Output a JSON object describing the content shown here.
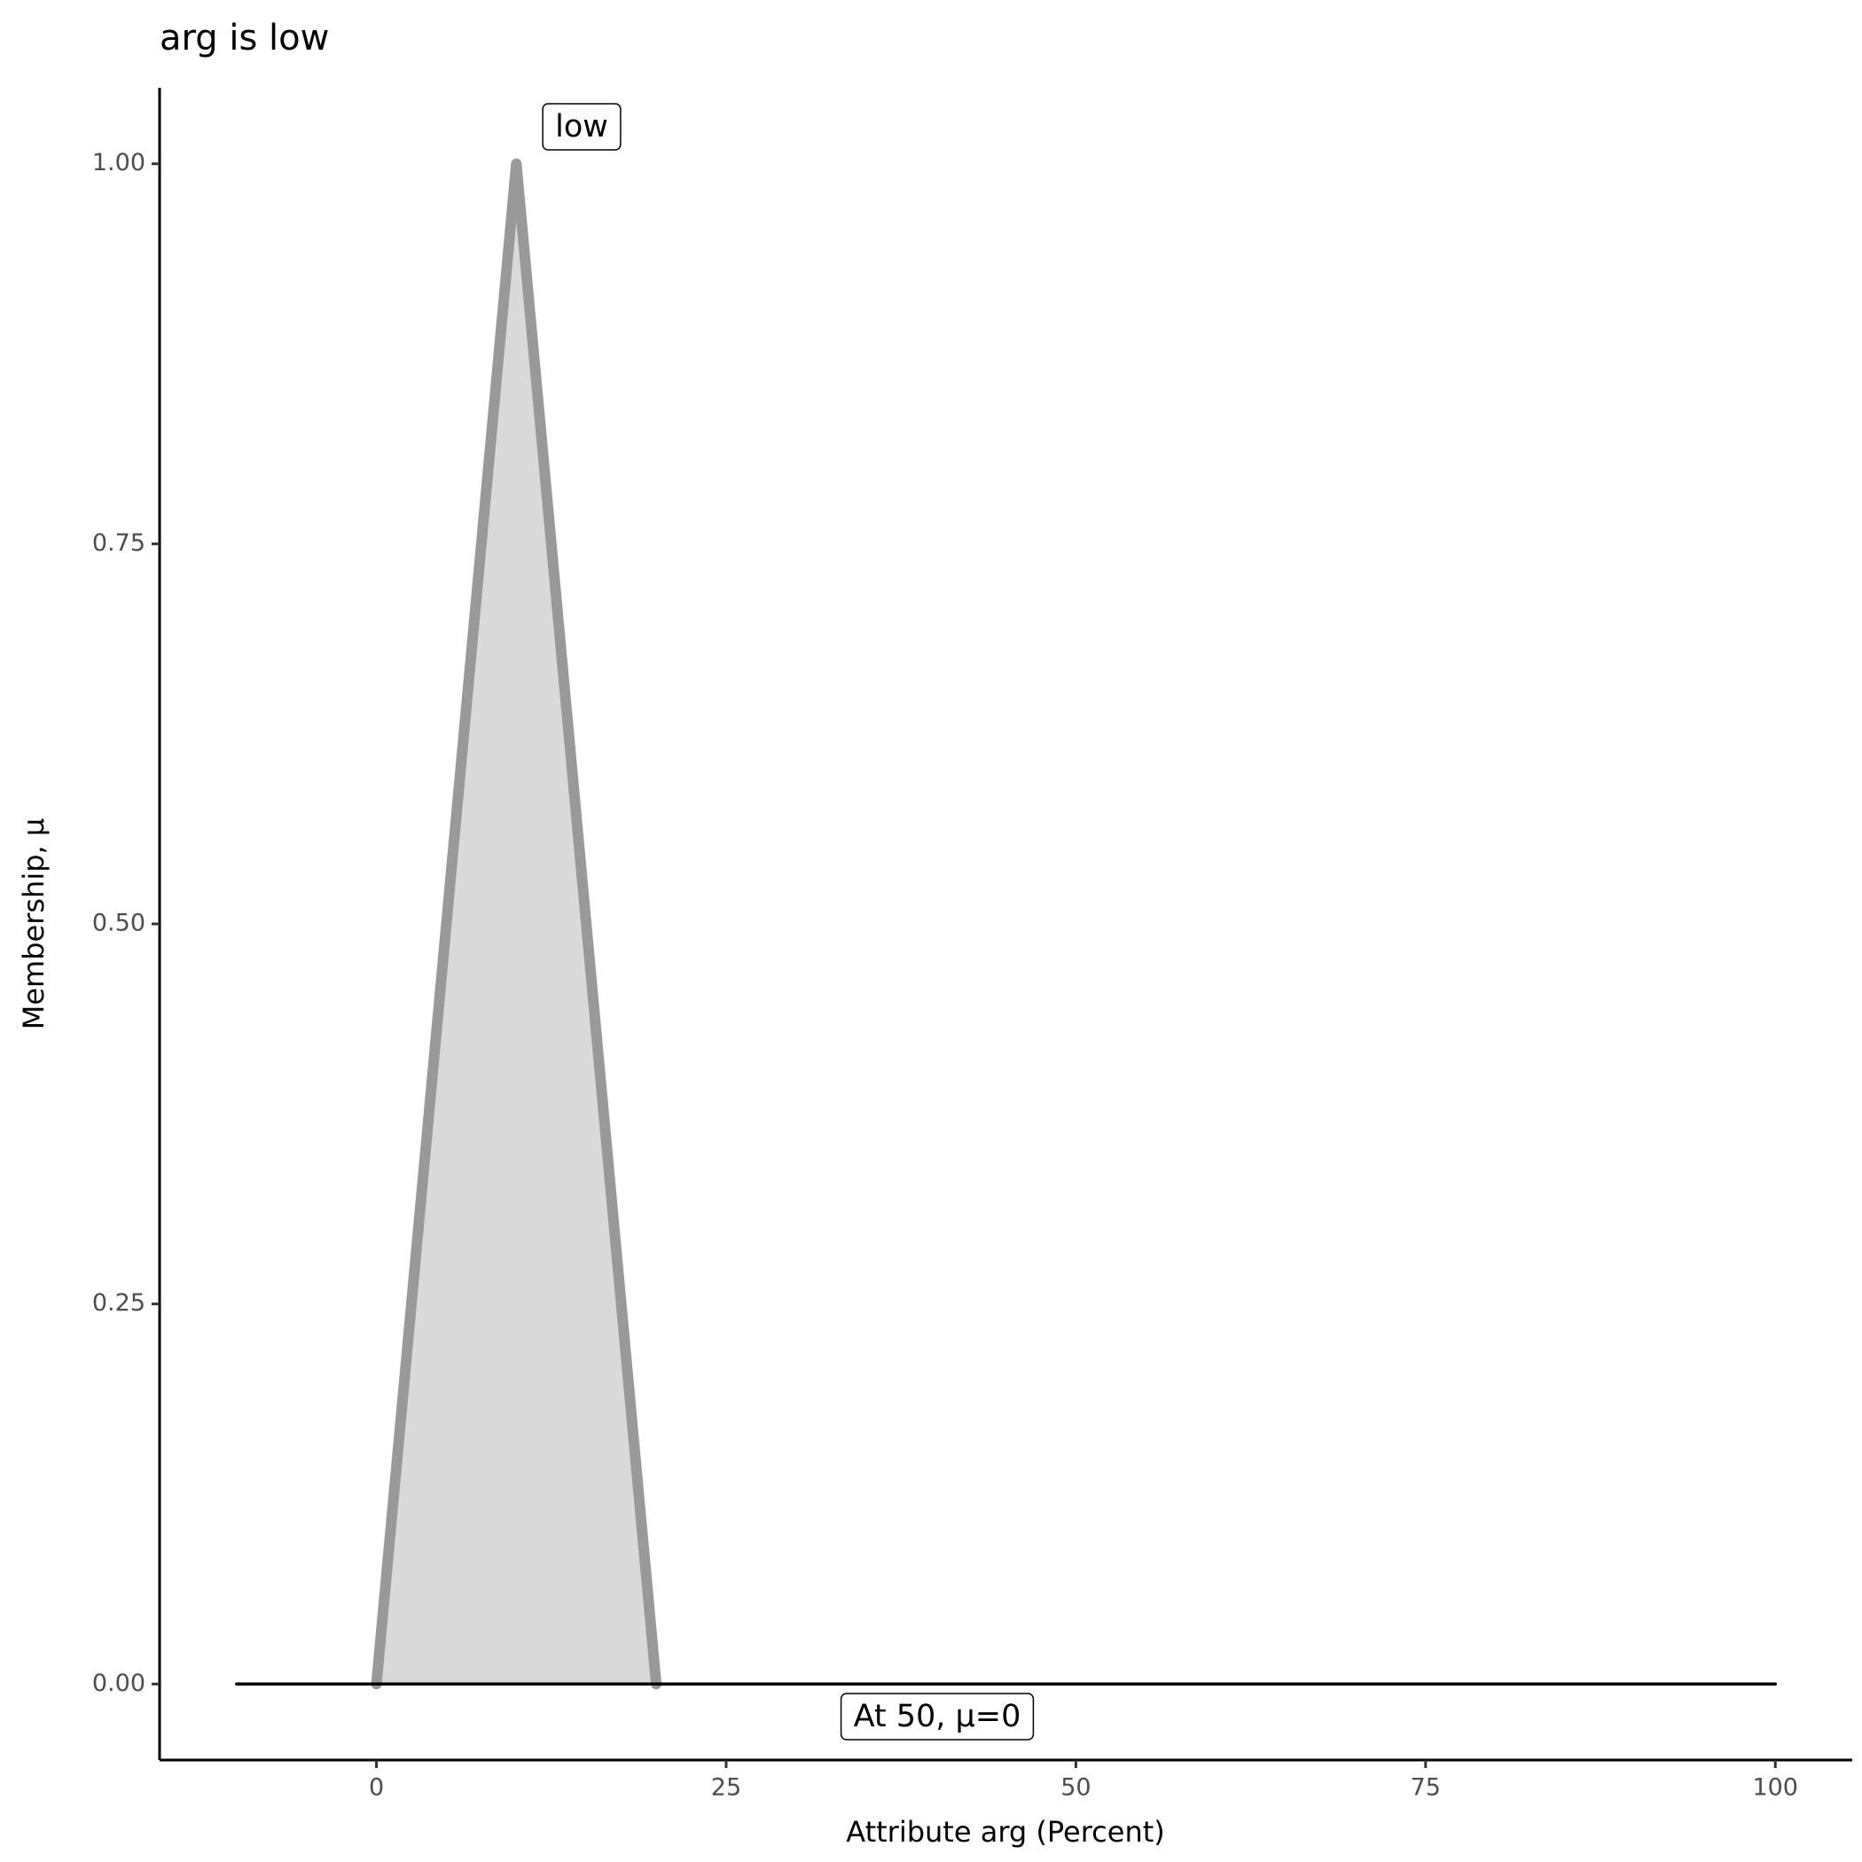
{
  "chart_data": {
    "type": "line",
    "title": "arg is low",
    "x_label": "Attribute arg (Percent)",
    "y_label": "Membership, μ",
    "series": [
      {
        "name": "low",
        "color": "#999999",
        "fill": "#d9d9d9",
        "x": [
          0,
          10,
          20
        ],
        "values": [
          0,
          1,
          0
        ]
      },
      {
        "name": "At 50, μ=0",
        "color": "#000000",
        "x": [
          -10,
          100
        ],
        "values": [
          0,
          0
        ]
      }
    ],
    "xlim": [
      -15.5,
      105.5
    ],
    "ylim": [
      -0.05,
      1.05
    ],
    "xticks": [
      0,
      25,
      50,
      75,
      100
    ],
    "yticks": [
      {
        "value": 0,
        "label": "0.00"
      },
      {
        "value": 0.25,
        "label": "0.25"
      },
      {
        "value": 0.5,
        "label": "0.50"
      },
      {
        "value": 0.75,
        "label": "0.75"
      },
      {
        "value": 1,
        "label": "1.00"
      }
    ],
    "grid": false
  }
}
